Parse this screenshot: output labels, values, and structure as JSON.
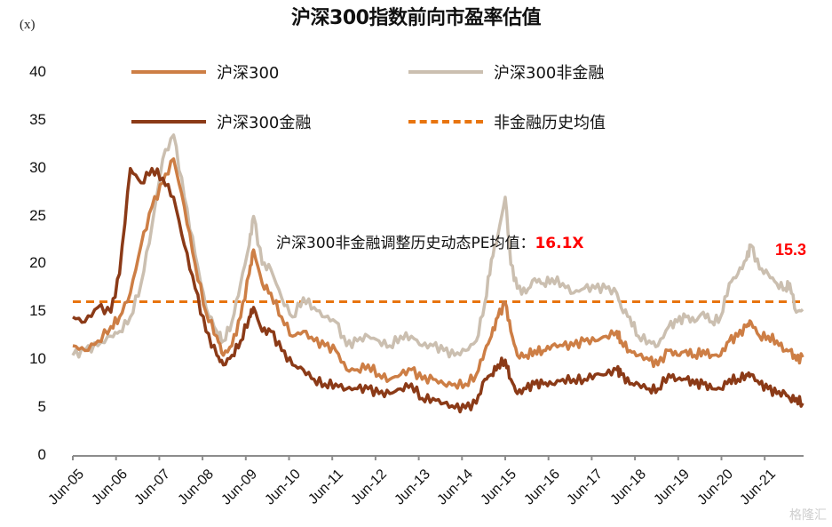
{
  "title": "沪深300指数前向市盈率估值",
  "unit_label": "(x)",
  "legend": [
    {
      "label": "沪深300",
      "color": "#CD7E45",
      "style": "solid"
    },
    {
      "label": "沪深300非金融",
      "color": "#CBBFB0",
      "style": "solid"
    },
    {
      "label": "沪深300金融",
      "color": "#8B3A17",
      "style": "solid"
    },
    {
      "label": "非金融历史均值",
      "color": "#E8740F",
      "style": "dashed"
    }
  ],
  "annotation": {
    "text": "沪深300非金融调整历史动态PE均值：",
    "value": "16.1X"
  },
  "last_value_label": "15.3",
  "watermark": "格隆汇",
  "chart_data": {
    "type": "line",
    "title": "沪深300指数前向市盈率估值",
    "xlabel": "",
    "ylabel": "(x)",
    "ylim": [
      0,
      40
    ],
    "yticks": [
      0,
      5,
      10,
      15,
      20,
      25,
      30,
      35,
      40
    ],
    "xticks": [
      "Jun-05",
      "Jun-06",
      "Jun-07",
      "Jun-08",
      "Jun-09",
      "Jun-10",
      "Jun-11",
      "Jun-12",
      "Jun-13",
      "Jun-14",
      "Jun-15",
      "Jun-16",
      "Jun-17",
      "Jun-18",
      "Jun-19",
      "Jun-20",
      "Jun-21"
    ],
    "grid": false,
    "legend_position": "top",
    "reference_line": {
      "name": "非金融历史均值",
      "value": 16.1
    },
    "annotations": [
      {
        "text": "沪深300非金融调整历史动态PE均值：16.1X"
      },
      {
        "text": "15.3",
        "note": "latest 沪深300非金融 value"
      }
    ],
    "x": [
      2005.42,
      2005.7,
      2006.0,
      2006.3,
      2006.5,
      2006.75,
      2007.0,
      2007.25,
      2007.5,
      2007.75,
      2008.0,
      2008.25,
      2008.5,
      2008.75,
      2008.9,
      2009.1,
      2009.3,
      2009.5,
      2009.6,
      2009.8,
      2010.0,
      2010.25,
      2010.5,
      2010.75,
      2011.0,
      2011.25,
      2011.5,
      2011.75,
      2012.0,
      2012.25,
      2012.5,
      2012.75,
      2013.0,
      2013.25,
      2013.5,
      2013.75,
      2014.0,
      2014.25,
      2014.5,
      2014.75,
      2014.95,
      2015.1,
      2015.25,
      2015.42,
      2015.55,
      2015.7,
      2015.9,
      2016.1,
      2016.3,
      2016.5,
      2016.75,
      2017.0,
      2017.25,
      2017.5,
      2017.75,
      2018.0,
      2018.1,
      2018.3,
      2018.5,
      2018.75,
      2018.95,
      2019.2,
      2019.4,
      2019.6,
      2019.8,
      2020.0,
      2020.2,
      2020.4,
      2020.6,
      2020.8,
      2021.0,
      2021.1,
      2021.3,
      2021.5,
      2021.7,
      2021.9,
      2022.0,
      2022.15,
      2022.3
    ],
    "series": [
      {
        "name": "沪深300",
        "values": [
          11.5,
          11.0,
          12.0,
          13.5,
          14.5,
          17.0,
          22.0,
          26.0,
          28.5,
          31.0,
          26.0,
          20.0,
          15.0,
          12.5,
          10.5,
          11.5,
          14.5,
          19.0,
          21.5,
          18.0,
          17.0,
          14.5,
          12.5,
          13.0,
          12.0,
          11.5,
          11.0,
          9.0,
          9.0,
          9.5,
          8.5,
          8.0,
          8.5,
          9.0,
          8.0,
          8.0,
          7.5,
          7.5,
          7.5,
          8.5,
          11.0,
          12.5,
          14.5,
          16.0,
          13.0,
          10.5,
          10.5,
          11.0,
          11.0,
          11.5,
          11.5,
          11.5,
          12.0,
          12.0,
          12.5,
          13.0,
          12.0,
          11.0,
          10.5,
          10.0,
          9.5,
          11.0,
          10.5,
          11.0,
          10.5,
          11.0,
          10.5,
          10.5,
          12.0,
          12.5,
          13.5,
          14.0,
          12.5,
          12.5,
          12.0,
          11.0,
          11.0,
          10.0,
          10.3
        ]
      },
      {
        "name": "沪深300非金融",
        "values": [
          10.5,
          11.0,
          11.5,
          12.5,
          13.0,
          14.5,
          18.0,
          24.0,
          31.0,
          33.5,
          27.0,
          21.0,
          15.5,
          13.0,
          12.0,
          14.0,
          18.0,
          22.0,
          25.0,
          20.0,
          19.5,
          16.5,
          14.5,
          16.5,
          15.5,
          14.5,
          14.0,
          11.5,
          12.0,
          12.5,
          12.0,
          11.5,
          12.5,
          12.5,
          11.5,
          11.5,
          11.0,
          10.5,
          11.0,
          12.0,
          16.0,
          20.5,
          23.0,
          27.0,
          20.0,
          17.5,
          17.0,
          18.5,
          18.0,
          18.5,
          18.0,
          17.0,
          17.5,
          17.5,
          17.5,
          17.0,
          15.5,
          14.5,
          12.5,
          12.0,
          11.5,
          13.5,
          14.0,
          14.5,
          14.0,
          15.0,
          14.0,
          14.5,
          18.0,
          19.0,
          20.5,
          22.0,
          19.5,
          19.0,
          18.0,
          17.5,
          18.0,
          15.0,
          15.3
        ]
      },
      {
        "name": "沪深300金融",
        "values": [
          14.5,
          14.0,
          15.5,
          15.0,
          19.0,
          30.0,
          28.5,
          30.0,
          29.0,
          27.0,
          22.0,
          17.5,
          13.0,
          10.5,
          9.5,
          10.5,
          12.0,
          14.5,
          15.5,
          13.0,
          13.0,
          11.0,
          9.5,
          9.0,
          8.0,
          7.5,
          7.5,
          7.0,
          7.0,
          7.0,
          6.5,
          6.5,
          7.0,
          7.5,
          6.0,
          6.0,
          5.5,
          5.0,
          5.0,
          5.5,
          8.0,
          8.5,
          9.5,
          10.0,
          8.0,
          6.5,
          7.0,
          7.5,
          7.5,
          7.5,
          8.0,
          8.0,
          8.0,
          8.5,
          8.5,
          9.0,
          8.5,
          7.5,
          7.5,
          7.0,
          7.0,
          8.5,
          8.0,
          8.0,
          7.5,
          7.5,
          7.0,
          7.0,
          8.0,
          8.0,
          8.5,
          8.5,
          7.5,
          7.0,
          6.5,
          6.5,
          6.0,
          6.0,
          5.5
        ]
      }
    ]
  }
}
